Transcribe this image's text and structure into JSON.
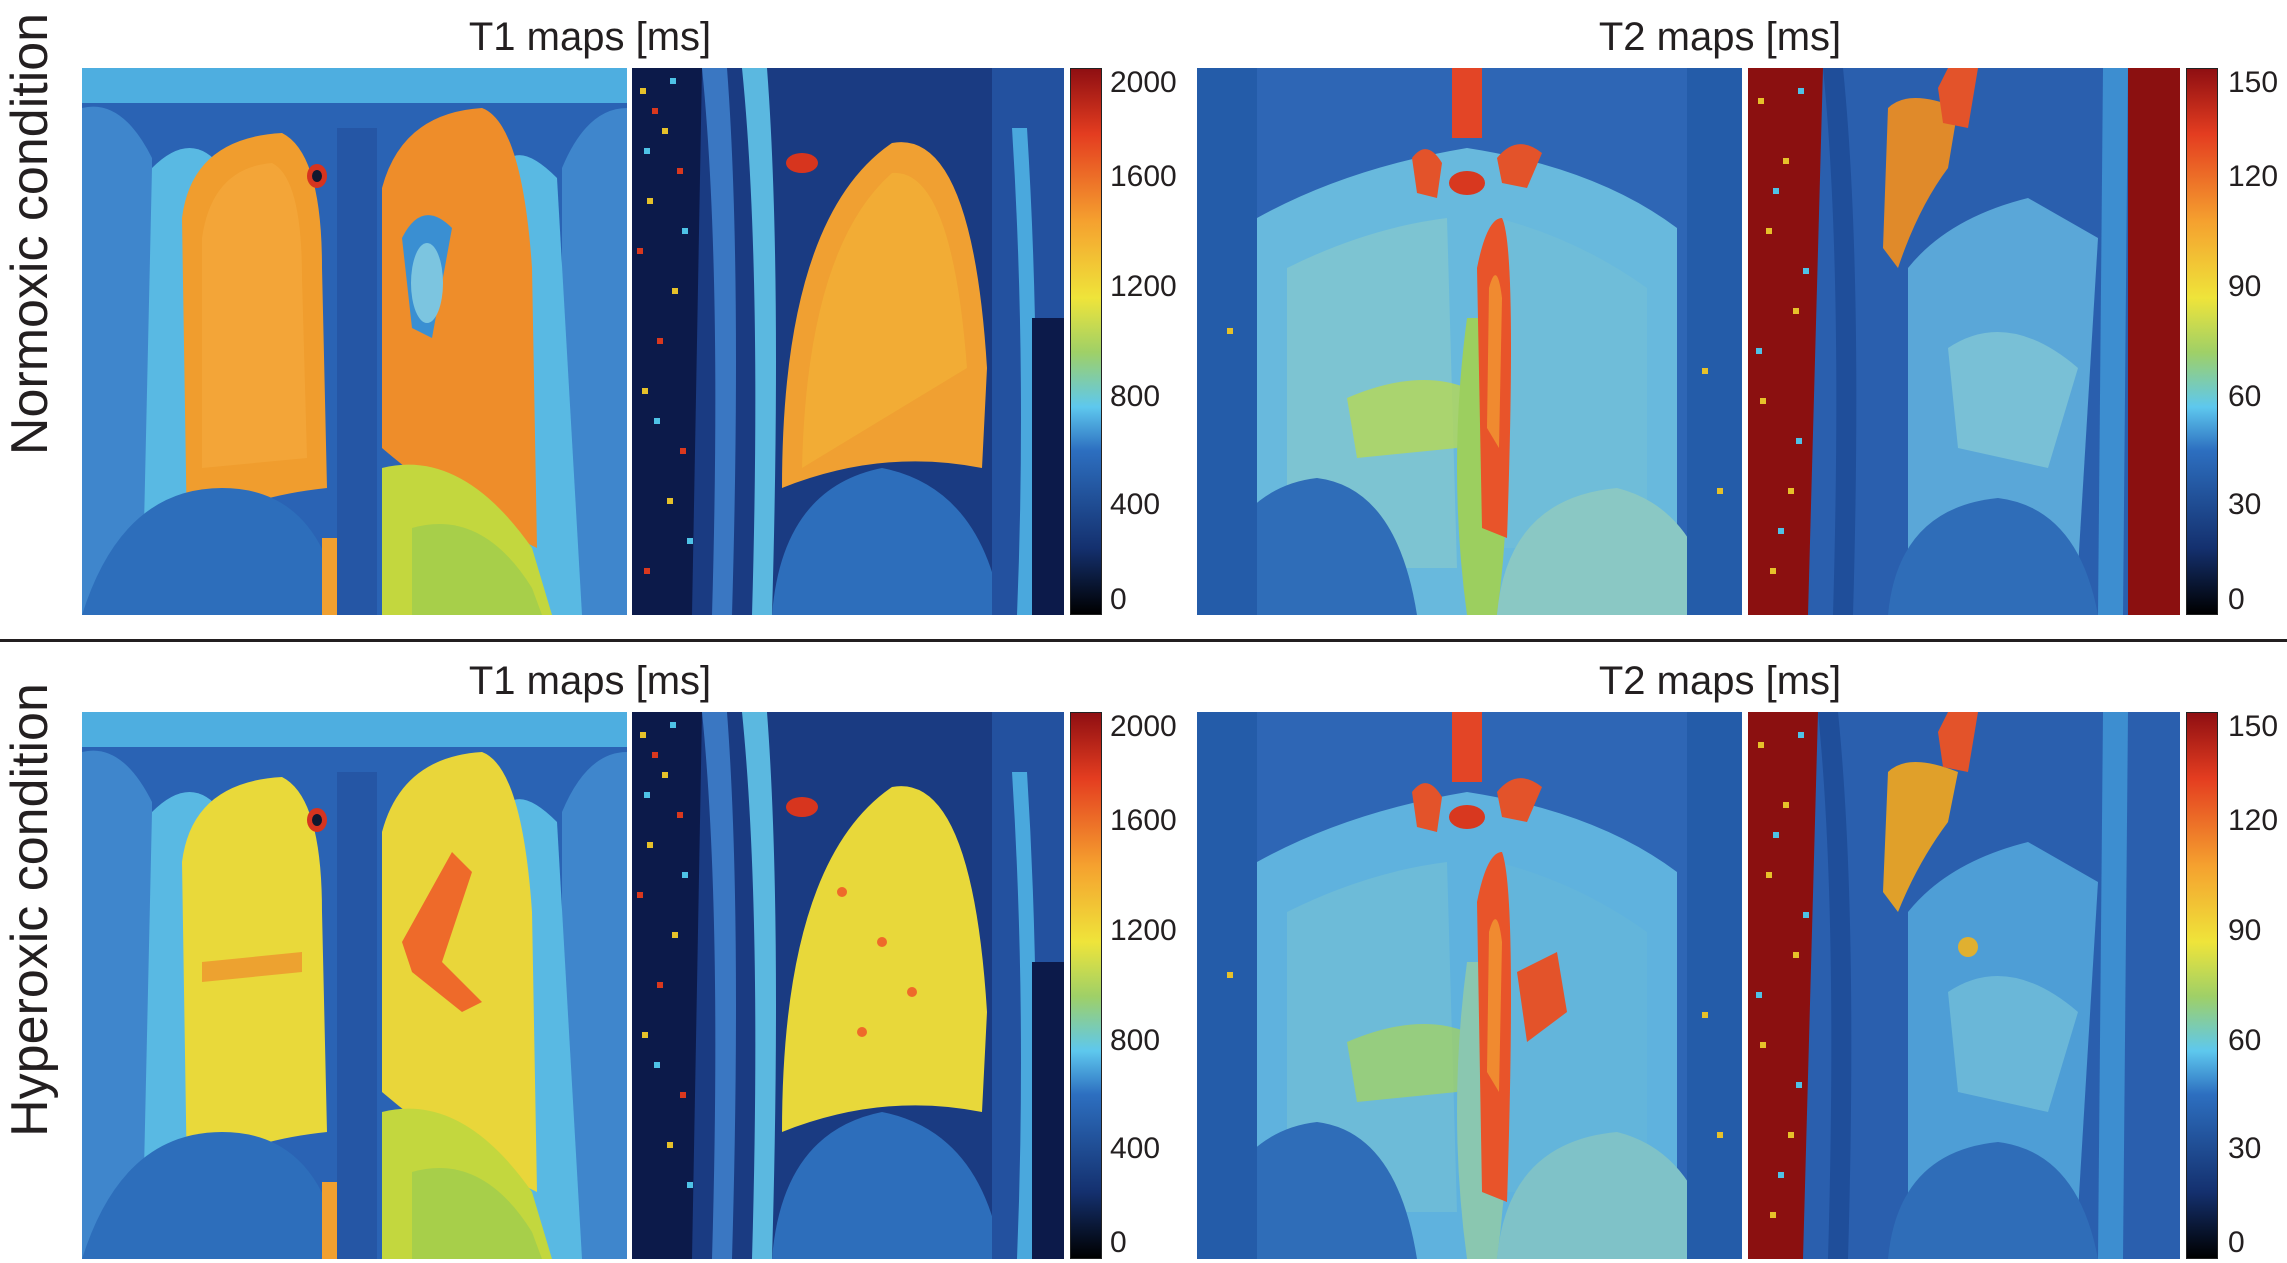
{
  "rows": [
    {
      "label": "Normoxic condition",
      "t1": {
        "title": "T1 maps [ms]",
        "ticks": [
          "0",
          "400",
          "800",
          "1200",
          "1600",
          "2000"
        ]
      },
      "t2": {
        "title": "T2 maps [ms]",
        "ticks": [
          "0",
          "30",
          "60",
          "90",
          "120",
          "150"
        ]
      }
    },
    {
      "label": "Hyperoxic condition",
      "t1": {
        "title": "T1 maps [ms]",
        "ticks": [
          "0",
          "400",
          "800",
          "1200",
          "1600",
          "2000"
        ]
      },
      "t2": {
        "title": "T2 maps [ms]",
        "ticks": [
          "0",
          "30",
          "60",
          "90",
          "120",
          "150"
        ]
      }
    }
  ],
  "colormap": "jet"
}
